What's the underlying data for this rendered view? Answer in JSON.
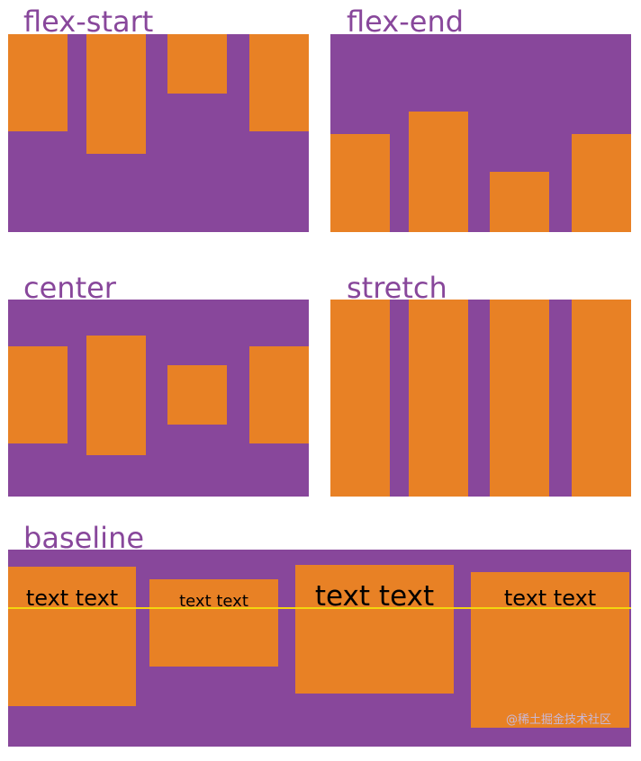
{
  "colors": {
    "container": "#88479b",
    "item": "#e88125",
    "baseline": "#f3d60f",
    "label": "#88479b"
  },
  "panels": {
    "flex_start": {
      "label": "flex-start"
    },
    "flex_end": {
      "label": "flex-end"
    },
    "center": {
      "label": "center"
    },
    "stretch": {
      "label": "stretch"
    },
    "baseline": {
      "label": "baseline",
      "item_texts": [
        "text text",
        "text text",
        "text text",
        "text text"
      ]
    }
  },
  "watermark": "@稀土掘金技术社区"
}
